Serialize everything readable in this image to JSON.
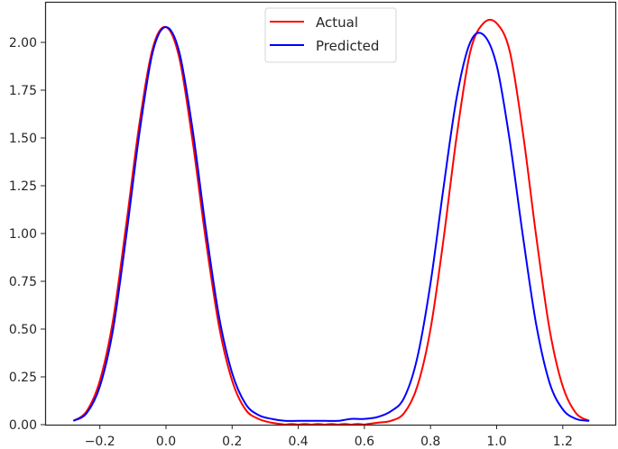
{
  "chart_data": {
    "type": "line",
    "title": "",
    "xlabel": "",
    "ylabel": "",
    "xlim": [
      -0.32,
      1.4
    ],
    "ylim": [
      0.0,
      2.22
    ],
    "grid": false,
    "legend_position": "upper center",
    "x_ticks": [
      -0.2,
      0.0,
      0.2,
      0.4,
      0.6,
      0.8,
      1.0,
      1.2
    ],
    "x_tick_labels": [
      "−0.2",
      "0.0",
      "0.2",
      "0.4",
      "0.6",
      "0.8",
      "1.0",
      "1.2"
    ],
    "y_ticks": [
      0.0,
      0.25,
      0.5,
      0.75,
      1.0,
      1.25,
      1.5,
      1.75,
      2.0
    ],
    "y_tick_labels": [
      "0.00",
      "0.25",
      "0.50",
      "0.75",
      "1.00",
      "1.25",
      "1.50",
      "1.75",
      "2.00"
    ],
    "x": [
      -0.28,
      -0.24,
      -0.2,
      -0.16,
      -0.12,
      -0.08,
      -0.04,
      0.0,
      0.04,
      0.08,
      0.12,
      0.16,
      0.2,
      0.24,
      0.28,
      0.32,
      0.36,
      0.4,
      0.44,
      0.48,
      0.52,
      0.56,
      0.6,
      0.64,
      0.68,
      0.72,
      0.76,
      0.8,
      0.84,
      0.88,
      0.92,
      0.96,
      1.0,
      1.04,
      1.08,
      1.12,
      1.16,
      1.2,
      1.24,
      1.28
    ],
    "series": [
      {
        "name": "Actual",
        "color": "#ff0000",
        "values": [
          0.02,
          0.07,
          0.23,
          0.55,
          1.05,
          1.58,
          1.97,
          2.08,
          1.92,
          1.49,
          0.97,
          0.52,
          0.23,
          0.08,
          0.03,
          0.01,
          0.0,
          0.0,
          0.0,
          0.0,
          0.0,
          0.0,
          0.0,
          0.01,
          0.02,
          0.06,
          0.2,
          0.5,
          0.98,
          1.52,
          1.95,
          2.1,
          2.1,
          1.95,
          1.52,
          0.98,
          0.5,
          0.2,
          0.06,
          0.02
        ]
      },
      {
        "name": "Predicted",
        "color": "#0000ff",
        "values": [
          0.02,
          0.06,
          0.2,
          0.5,
          0.99,
          1.53,
          1.95,
          2.08,
          1.95,
          1.55,
          1.03,
          0.57,
          0.27,
          0.11,
          0.05,
          0.03,
          0.02,
          0.02,
          0.02,
          0.02,
          0.02,
          0.03,
          0.03,
          0.04,
          0.07,
          0.14,
          0.35,
          0.74,
          1.25,
          1.72,
          2.0,
          2.04,
          1.88,
          1.48,
          0.98,
          0.52,
          0.22,
          0.08,
          0.03,
          0.02
        ]
      }
    ]
  },
  "legend": {
    "items": [
      {
        "label": "Actual",
        "color": "#ff0000"
      },
      {
        "label": "Predicted",
        "color": "#0000ff"
      }
    ]
  }
}
